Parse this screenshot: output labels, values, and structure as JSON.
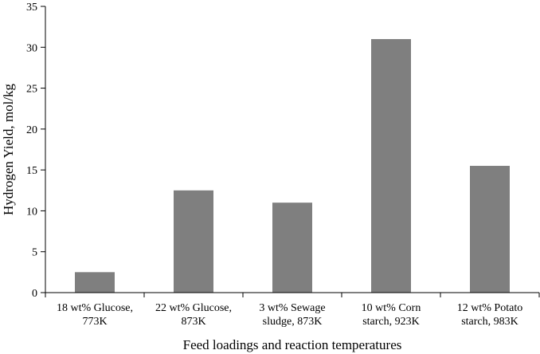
{
  "chart_data": {
    "type": "bar",
    "title": "",
    "xlabel": "Feed loadings and reaction temperatures",
    "ylabel": "Hydrogen Yield, mol/kg",
    "ylim": [
      0,
      35
    ],
    "yticks": [
      0,
      5,
      10,
      15,
      20,
      25,
      30,
      35
    ],
    "grid": false,
    "legend": "none",
    "bar_color": "#7f7f7f",
    "categories": [
      [
        "18 wt% Glucose,",
        "773K"
      ],
      [
        "22 wt% Glucose,",
        "873K"
      ],
      [
        "3 wt% Sewage",
        "sludge, 873K"
      ],
      [
        "10 wt% Corn",
        "starch,  923K"
      ],
      [
        "12 wt% Potato",
        "starch, 983K"
      ]
    ],
    "values": [
      2.5,
      12.5,
      11.0,
      31.0,
      15.5
    ]
  }
}
